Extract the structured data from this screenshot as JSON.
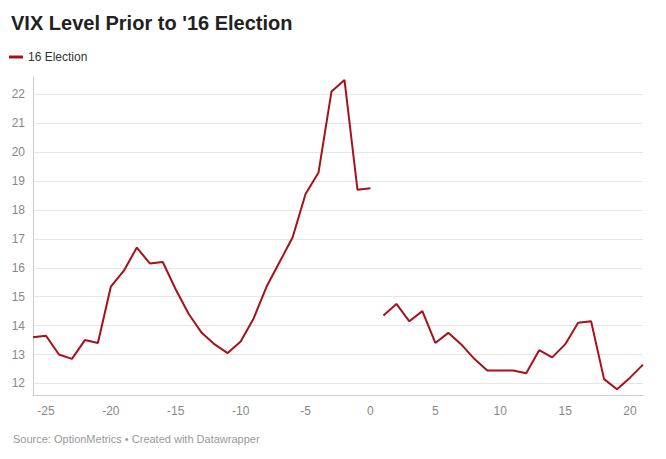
{
  "chart_data": {
    "type": "line",
    "title": "VIX Level Prior to '16 Election",
    "source": "Source: OptionMetrics • Created with Datawrapper",
    "x": [
      -26,
      -25,
      -24,
      -23,
      -22,
      -21,
      -20,
      -19,
      -18,
      -17,
      -16,
      -15,
      -14,
      -13,
      -12,
      -11,
      -10,
      -9,
      -8,
      -7,
      -6,
      -5,
      -4,
      -3,
      -2,
      -1,
      0,
      0.5,
      1,
      2,
      3,
      4,
      5,
      6,
      7,
      8,
      9,
      10,
      11,
      12,
      13,
      14,
      15,
      16,
      17,
      18,
      19,
      20,
      21
    ],
    "series": [
      {
        "name": "16 Election",
        "color": "#a8101a",
        "marker": "none",
        "values": [
          13.6,
          13.65,
          13.0,
          12.85,
          13.5,
          13.4,
          15.35,
          15.9,
          16.7,
          16.15,
          16.2,
          15.25,
          14.4,
          13.75,
          13.35,
          13.05,
          13.45,
          14.25,
          15.35,
          16.2,
          17.05,
          18.55,
          19.3,
          22.1,
          22.5,
          18.7,
          18.75,
          null,
          14.35,
          14.75,
          14.15,
          14.5,
          13.4,
          13.75,
          13.35,
          12.85,
          12.45,
          12.45,
          12.45,
          12.35,
          13.15,
          12.9,
          13.35,
          14.1,
          14.15,
          12.15,
          11.8,
          12.2,
          12.65
        ]
      }
    ],
    "xlim": [
      -26,
      21
    ],
    "xticks": [
      -25,
      -20,
      -15,
      -10,
      -5,
      0,
      5,
      10,
      15,
      20
    ],
    "ylim": [
      11.6,
      22.6
    ],
    "yticks": [
      12,
      13,
      14,
      15,
      16,
      17,
      18,
      19,
      20,
      21,
      22
    ],
    "grid": true,
    "legend": "top-left"
  }
}
